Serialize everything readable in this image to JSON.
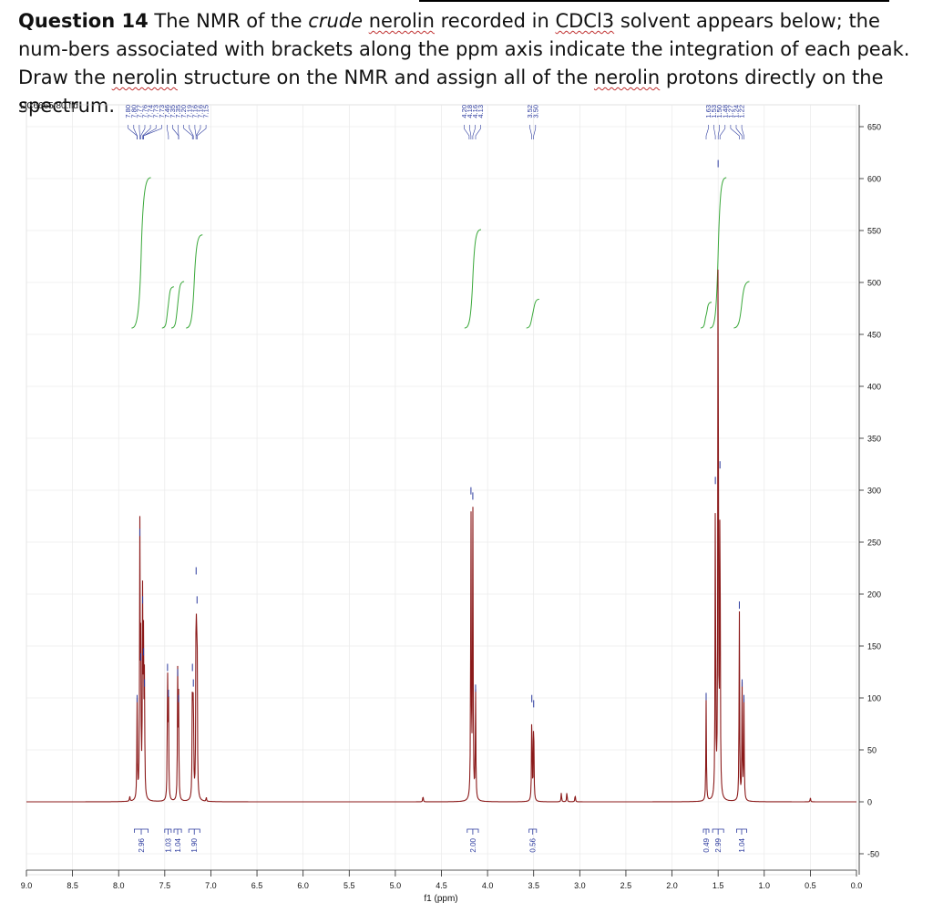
{
  "question": {
    "number": "Question 14",
    "t1": " The NMR of the ",
    "crude": "crude",
    "t2": " ",
    "nerolin1": "nerolin",
    "t3": " recorded in ",
    "cdcl3": "CDCl3",
    "t4": " solvent appears below; the num-bers associated with brackets along the ppm axis indicate the integration of each peak. Draw the ",
    "nerolin2": "nerolin",
    "t5": " structure on the NMR and assign all of the ",
    "nerolin3": "nerolin",
    "t6": " protons directly on the spectrum."
  },
  "colors": {
    "spectrum": "#8b1a1a",
    "integral": "#3aa83a",
    "labels": "#2b3a9e",
    "grid": "#e6e6e6"
  },
  "chart_data": {
    "type": "line",
    "file_label": "DC6665.80.fid",
    "xlabel": "f1 (ppm)",
    "xlim": [
      9.0,
      0.0
    ],
    "ylim": [
      -60,
      660
    ],
    "x_ticks": [
      "9.0",
      "8.5",
      "8.0",
      "7.5",
      "7.0",
      "6.5",
      "6.0",
      "5.5",
      "5.0",
      "4.5",
      "4.0",
      "3.5",
      "3.0",
      "2.5",
      "2.0",
      "1.5",
      "1.0",
      "0.5",
      "0.0"
    ],
    "y_ticks": [
      650,
      600,
      550,
      500,
      450,
      400,
      350,
      300,
      250,
      200,
      150,
      100,
      50,
      0,
      -50
    ],
    "peaks": [
      {
        "ppm": 7.8,
        "height": 95
      },
      {
        "ppm": 7.77,
        "height": 255
      },
      {
        "ppm": 7.76,
        "height": 135
      },
      {
        "ppm": 7.74,
        "height": 190
      },
      {
        "ppm": 7.73,
        "height": 140
      },
      {
        "ppm": 7.72,
        "height": 110
      },
      {
        "ppm": 7.47,
        "height": 125
      },
      {
        "ppm": 7.46,
        "height": 100
      },
      {
        "ppm": 7.36,
        "height": 120
      },
      {
        "ppm": 7.35,
        "height": 95
      },
      {
        "ppm": 7.2,
        "height": 125
      },
      {
        "ppm": 7.19,
        "height": 110
      },
      {
        "ppm": 7.16,
        "height": 218
      },
      {
        "ppm": 7.15,
        "height": 190
      },
      {
        "ppm": 4.18,
        "height": 295
      },
      {
        "ppm": 4.16,
        "height": 290
      },
      {
        "ppm": 4.13,
        "height": 105
      },
      {
        "ppm": 3.52,
        "height": 95
      },
      {
        "ppm": 3.5,
        "height": 90
      },
      {
        "ppm": 1.63,
        "height": 97
      },
      {
        "ppm": 1.53,
        "height": 305
      },
      {
        "ppm": 1.5,
        "height": 610
      },
      {
        "ppm": 1.48,
        "height": 320
      },
      {
        "ppm": 1.27,
        "height": 185
      },
      {
        "ppm": 1.24,
        "height": 110
      },
      {
        "ppm": 1.22,
        "height": 95
      }
    ],
    "peak_label_groups": [
      {
        "labels": [
          "7.80",
          "7.80",
          "7.77",
          "7.76",
          "7.74",
          "7.73",
          "7.73",
          "7.46",
          "7.35",
          "7.35",
          "7.20",
          "7.19",
          "7.16",
          "7.16",
          "7.15"
        ]
      },
      {
        "labels": [
          "4.20",
          "4.18",
          "4.16",
          "4.13"
        ]
      },
      {
        "labels": [
          "3.52",
          "3.50"
        ]
      },
      {
        "labels": [
          "1.63",
          "1.53",
          "1.50",
          "1.48",
          "1.27",
          "1.24",
          "1.22"
        ]
      }
    ],
    "integrals": [
      {
        "from": 7.83,
        "to": 7.68,
        "value": "2.96",
        "y_base": 457,
        "y_top": 600
      },
      {
        "from": 7.5,
        "to": 7.43,
        "value": "1.03",
        "y_base": 457,
        "y_top": 495
      },
      {
        "from": 7.4,
        "to": 7.32,
        "value": "1.04",
        "y_base": 457,
        "y_top": 500
      },
      {
        "from": 7.24,
        "to": 7.12,
        "value": "1.90",
        "y_base": 457,
        "y_top": 545
      },
      {
        "from": 4.22,
        "to": 4.1,
        "value": "2.00",
        "y_base": 457,
        "y_top": 550
      },
      {
        "from": 3.55,
        "to": 3.47,
        "value": "0.56",
        "y_base": 457,
        "y_top": 483
      },
      {
        "from": 1.66,
        "to": 1.6,
        "value": "0.49",
        "y_base": 457,
        "y_top": 480
      },
      {
        "from": 1.56,
        "to": 1.44,
        "value": "2.99",
        "y_base": 457,
        "y_top": 600
      },
      {
        "from": 1.3,
        "to": 1.19,
        "value": "1.04",
        "y_base": 457,
        "y_top": 500
      }
    ],
    "minor_peaks": [
      {
        "ppm": 7.88,
        "height": 5
      },
      {
        "ppm": 7.05,
        "height": 4
      },
      {
        "ppm": 4.7,
        "height": 6
      },
      {
        "ppm": 3.2,
        "height": 9
      },
      {
        "ppm": 3.14,
        "height": 10
      },
      {
        "ppm": 3.05,
        "height": 7
      },
      {
        "ppm": 0.5,
        "height": 4
      }
    ]
  }
}
